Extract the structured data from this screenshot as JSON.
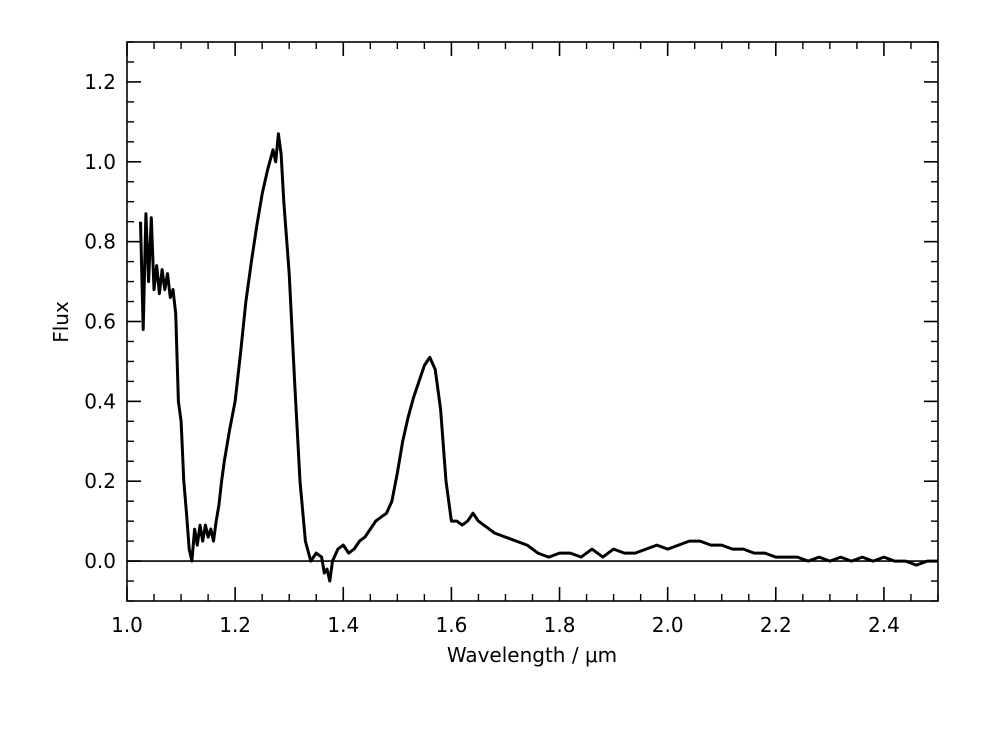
{
  "chart_data": {
    "type": "line",
    "title": "",
    "xlabel": "Wavelength / μm",
    "ylabel": "Flux",
    "xlim": [
      1.0,
      2.5
    ],
    "ylim": [
      -0.1,
      1.3
    ],
    "x_ticks": [
      1.0,
      1.2,
      1.4,
      1.6,
      1.8,
      2.0,
      2.2,
      2.4
    ],
    "x_tick_labels": [
      "1.0",
      "1.2",
      "1.4",
      "1.6",
      "1.8",
      "2.0",
      "2.2",
      "2.4"
    ],
    "y_ticks": [
      0.0,
      0.2,
      0.4,
      0.6,
      0.8,
      1.0,
      1.2
    ],
    "y_tick_labels": [
      "0.0",
      "0.2",
      "0.4",
      "0.6",
      "0.8",
      "1.0",
      "1.2"
    ],
    "reference_line": {
      "y": 0.0
    },
    "series": [
      {
        "x": [
          1.025,
          1.03,
          1.035,
          1.04,
          1.045,
          1.05,
          1.055,
          1.06,
          1.065,
          1.07,
          1.075,
          1.08,
          1.085,
          1.09,
          1.095,
          1.1,
          1.105,
          1.11,
          1.115,
          1.12,
          1.125,
          1.13,
          1.135,
          1.14,
          1.145,
          1.15,
          1.155,
          1.16,
          1.165,
          1.17,
          1.175,
          1.18,
          1.19,
          1.2,
          1.21,
          1.22,
          1.23,
          1.24,
          1.25,
          1.26,
          1.27,
          1.275,
          1.28,
          1.285,
          1.29,
          1.3,
          1.31,
          1.32,
          1.33,
          1.34,
          1.35,
          1.36,
          1.365,
          1.37,
          1.375,
          1.38,
          1.39,
          1.4,
          1.41,
          1.42,
          1.43,
          1.44,
          1.45,
          1.46,
          1.47,
          1.48,
          1.49,
          1.5,
          1.51,
          1.52,
          1.53,
          1.54,
          1.55,
          1.56,
          1.57,
          1.58,
          1.59,
          1.6,
          1.61,
          1.62,
          1.63,
          1.64,
          1.65,
          1.66,
          1.67,
          1.68,
          1.7,
          1.72,
          1.74,
          1.76,
          1.78,
          1.8,
          1.82,
          1.84,
          1.86,
          1.88,
          1.9,
          1.92,
          1.94,
          1.96,
          1.98,
          2.0,
          2.02,
          2.04,
          2.06,
          2.08,
          2.1,
          2.12,
          2.14,
          2.16,
          2.18,
          2.2,
          2.22,
          2.24,
          2.26,
          2.28,
          2.3,
          2.32,
          2.34,
          2.36,
          2.38,
          2.4,
          2.42,
          2.44,
          2.46,
          2.48,
          2.5
        ],
        "y": [
          0.85,
          0.58,
          0.87,
          0.7,
          0.86,
          0.68,
          0.74,
          0.67,
          0.73,
          0.68,
          0.72,
          0.66,
          0.68,
          0.62,
          0.4,
          0.35,
          0.2,
          0.12,
          0.03,
          0.0,
          0.08,
          0.04,
          0.09,
          0.05,
          0.09,
          0.06,
          0.08,
          0.05,
          0.1,
          0.14,
          0.2,
          0.25,
          0.33,
          0.4,
          0.52,
          0.65,
          0.75,
          0.84,
          0.92,
          0.98,
          1.03,
          1.0,
          1.07,
          1.02,
          0.9,
          0.72,
          0.45,
          0.2,
          0.05,
          0.0,
          0.02,
          0.01,
          -0.03,
          -0.02,
          -0.05,
          0.0,
          0.03,
          0.04,
          0.02,
          0.03,
          0.05,
          0.06,
          0.08,
          0.1,
          0.11,
          0.12,
          0.15,
          0.22,
          0.3,
          0.36,
          0.41,
          0.45,
          0.49,
          0.51,
          0.48,
          0.38,
          0.2,
          0.1,
          0.1,
          0.09,
          0.1,
          0.12,
          0.1,
          0.09,
          0.08,
          0.07,
          0.06,
          0.05,
          0.04,
          0.02,
          0.01,
          0.02,
          0.02,
          0.01,
          0.03,
          0.01,
          0.03,
          0.02,
          0.02,
          0.03,
          0.04,
          0.03,
          0.04,
          0.05,
          0.05,
          0.04,
          0.04,
          0.03,
          0.03,
          0.02,
          0.02,
          0.01,
          0.01,
          0.01,
          0.0,
          0.01,
          0.0,
          0.01,
          0.0,
          0.01,
          0.0,
          0.01,
          0.0,
          0.0,
          -0.01,
          0.0,
          0.0
        ]
      }
    ]
  }
}
